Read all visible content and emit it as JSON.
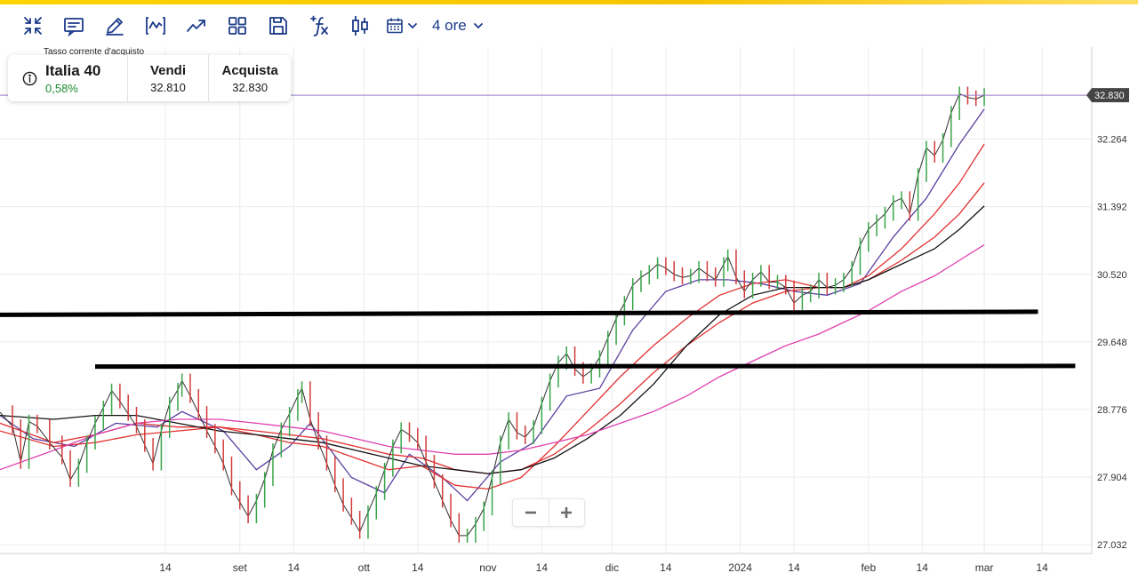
{
  "toolbar": {
    "icons": [
      "collapse-icon",
      "chart-settings-icon",
      "draw-icon",
      "indicator-icon",
      "trend-icon",
      "layout-icon",
      "save-icon",
      "formula-icon",
      "candle-icon",
      "calendar-icon"
    ],
    "timeframe": "4 ore"
  },
  "instrument": {
    "caption": "Tasso corrente d'acquisto",
    "name": "Italia 40",
    "change": "0,58%",
    "sell_label": "Vendi",
    "sell_value": "32.810",
    "buy_label": "Acquista",
    "buy_value": "32.830",
    "price_tag": "32.830",
    "change_color": "#1a8a2e"
  },
  "chart_data": {
    "type": "line",
    "instrument": "Italia 40",
    "timeframe": "4 ore",
    "current_price": 32830,
    "y_ticks": [
      "27.032",
      "27.904",
      "28.776",
      "29.648",
      "30.520",
      "31.392",
      "32.264"
    ],
    "y_tick_values": [
      27032,
      27904,
      28776,
      29648,
      30520,
      31392,
      32264
    ],
    "ylim": [
      26920,
      33450
    ],
    "x_ticks": [
      "14",
      "set",
      "14",
      "ott",
      "14",
      "nov",
      "14",
      "dic",
      "14",
      "2024",
      "14",
      "feb",
      "14",
      "mar",
      "14"
    ],
    "x_tick_days": [
      -78,
      -60,
      -47,
      -30,
      -17,
      0,
      13,
      30,
      43,
      61,
      74,
      92,
      105,
      120,
      134
    ],
    "xlim": [
      -118,
      146
    ],
    "price_series": {
      "name": "",
      "color": "#2f2f2f",
      "points": [
        [
          -118,
          28740
        ],
        [
          -115,
          28560
        ],
        [
          -113,
          28100
        ],
        [
          -111,
          28620
        ],
        [
          -109,
          28560
        ],
        [
          -106,
          28350
        ],
        [
          -103,
          28160
        ],
        [
          -101,
          27870
        ],
        [
          -99,
          28050
        ],
        [
          -97,
          28350
        ],
        [
          -95,
          28600
        ],
        [
          -93,
          28800
        ],
        [
          -91,
          29020
        ],
        [
          -89,
          28880
        ],
        [
          -87,
          28720
        ],
        [
          -85,
          28560
        ],
        [
          -83,
          28320
        ],
        [
          -81,
          28080
        ],
        [
          -79,
          28500
        ],
        [
          -77,
          28850
        ],
        [
          -75,
          29030
        ],
        [
          -74,
          29150
        ],
        [
          -72,
          28950
        ],
        [
          -70,
          28730
        ],
        [
          -68,
          28500
        ],
        [
          -66,
          28300
        ],
        [
          -64,
          28080
        ],
        [
          -62,
          27760
        ],
        [
          -60,
          27580
        ],
        [
          -58,
          27400
        ],
        [
          -56,
          27600
        ],
        [
          -54,
          27880
        ],
        [
          -52,
          28250
        ],
        [
          -50,
          28520
        ],
        [
          -48,
          28720
        ],
        [
          -46,
          28950
        ],
        [
          -45,
          29050
        ],
        [
          -43,
          28650
        ],
        [
          -41,
          28350
        ],
        [
          -39,
          28080
        ],
        [
          -37,
          27800
        ],
        [
          -35,
          27550
        ],
        [
          -33,
          27380
        ],
        [
          -31,
          27200
        ],
        [
          -29,
          27450
        ],
        [
          -27,
          27700
        ],
        [
          -25,
          28000
        ],
        [
          -23,
          28300
        ],
        [
          -21,
          28520
        ],
        [
          -19,
          28450
        ],
        [
          -17,
          28350
        ],
        [
          -15,
          28100
        ],
        [
          -13,
          27850
        ],
        [
          -11,
          27600
        ],
        [
          -9,
          27350
        ],
        [
          -7,
          27150
        ],
        [
          -5,
          27150
        ],
        [
          -3,
          27300
        ],
        [
          -1,
          27500
        ],
        [
          1,
          27900
        ],
        [
          3,
          28350
        ],
        [
          5,
          28650
        ],
        [
          7,
          28480
        ],
        [
          9,
          28420
        ],
        [
          11,
          28550
        ],
        [
          13,
          28850
        ],
        [
          15,
          29150
        ],
        [
          17,
          29380
        ],
        [
          19,
          29500
        ],
        [
          21,
          29300
        ],
        [
          23,
          29200
        ],
        [
          25,
          29280
        ],
        [
          27,
          29450
        ],
        [
          29,
          29700
        ],
        [
          31,
          29950
        ],
        [
          33,
          30150
        ],
        [
          35,
          30380
        ],
        [
          37,
          30480
        ],
        [
          39,
          30550
        ],
        [
          41,
          30650
        ],
        [
          43,
          30600
        ],
        [
          45,
          30520
        ],
        [
          47,
          30480
        ],
        [
          49,
          30500
        ],
        [
          51,
          30600
        ],
        [
          53,
          30520
        ],
        [
          55,
          30450
        ],
        [
          57,
          30650
        ],
        [
          58,
          30750
        ],
        [
          60,
          30480
        ],
        [
          62,
          30300
        ],
        [
          64,
          30450
        ],
        [
          66,
          30550
        ],
        [
          68,
          30420
        ],
        [
          70,
          30420
        ],
        [
          72,
          30350
        ],
        [
          74,
          30150
        ],
        [
          76,
          30250
        ],
        [
          78,
          30300
        ],
        [
          80,
          30450
        ],
        [
          82,
          30350
        ],
        [
          84,
          30380
        ],
        [
          86,
          30450
        ],
        [
          88,
          30600
        ],
        [
          90,
          30900
        ],
        [
          92,
          31100
        ],
        [
          94,
          31200
        ],
        [
          96,
          31300
        ],
        [
          98,
          31450
        ],
        [
          100,
          31500
        ],
        [
          102,
          31300
        ],
        [
          104,
          31800
        ],
        [
          106,
          32150
        ],
        [
          108,
          32050
        ],
        [
          110,
          32250
        ],
        [
          112,
          32600
        ],
        [
          114,
          32850
        ],
        [
          116,
          32800
        ],
        [
          118,
          32780
        ],
        [
          120,
          32830
        ]
      ]
    },
    "moving_averages": [
      {
        "name": "",
        "color": "#5a3fa0",
        "points": [
          [
            -118,
            28700
          ],
          [
            -110,
            28400
          ],
          [
            -100,
            28300
          ],
          [
            -90,
            28600
          ],
          [
            -80,
            28550
          ],
          [
            -74,
            28750
          ],
          [
            -64,
            28500
          ],
          [
            -56,
            28000
          ],
          [
            -48,
            28300
          ],
          [
            -43,
            28600
          ],
          [
            -33,
            27900
          ],
          [
            -25,
            27700
          ],
          [
            -19,
            28200
          ],
          [
            -11,
            27900
          ],
          [
            -5,
            27600
          ],
          [
            3,
            28100
          ],
          [
            11,
            28350
          ],
          [
            19,
            28950
          ],
          [
            27,
            29050
          ],
          [
            35,
            29800
          ],
          [
            43,
            30300
          ],
          [
            51,
            30450
          ],
          [
            58,
            30450
          ],
          [
            66,
            30400
          ],
          [
            74,
            30300
          ],
          [
            82,
            30250
          ],
          [
            90,
            30400
          ],
          [
            98,
            31000
          ],
          [
            106,
            31500
          ],
          [
            114,
            32200
          ],
          [
            120,
            32650
          ]
        ]
      },
      {
        "name": "",
        "color": "#e23030",
        "points": [
          [
            -118,
            28600
          ],
          [
            -105,
            28350
          ],
          [
            -95,
            28450
          ],
          [
            -85,
            28600
          ],
          [
            -75,
            28550
          ],
          [
            -65,
            28550
          ],
          [
            -56,
            28450
          ],
          [
            -48,
            28350
          ],
          [
            -40,
            28300
          ],
          [
            -32,
            28150
          ],
          [
            -24,
            28000
          ],
          [
            -16,
            28050
          ],
          [
            -8,
            27800
          ],
          [
            0,
            27750
          ],
          [
            8,
            27900
          ],
          [
            16,
            28300
          ],
          [
            24,
            28750
          ],
          [
            32,
            29200
          ],
          [
            40,
            29600
          ],
          [
            48,
            29950
          ],
          [
            56,
            30250
          ],
          [
            64,
            30400
          ],
          [
            72,
            30450
          ],
          [
            80,
            30350
          ],
          [
            86,
            30350
          ],
          [
            92,
            30500
          ],
          [
            100,
            30850
          ],
          [
            108,
            31300
          ],
          [
            114,
            31700
          ],
          [
            120,
            32200
          ]
        ]
      },
      {
        "name": "",
        "color": "#e23030",
        "points": [
          [
            -118,
            28500
          ],
          [
            -105,
            28300
          ],
          [
            -95,
            28350
          ],
          [
            -85,
            28450
          ],
          [
            -75,
            28500
          ],
          [
            -65,
            28550
          ],
          [
            -56,
            28500
          ],
          [
            -48,
            28450
          ],
          [
            -40,
            28400
          ],
          [
            -32,
            28300
          ],
          [
            -24,
            28200
          ],
          [
            -16,
            28150
          ],
          [
            -8,
            28000
          ],
          [
            0,
            27950
          ],
          [
            8,
            28000
          ],
          [
            16,
            28200
          ],
          [
            24,
            28500
          ],
          [
            32,
            28850
          ],
          [
            40,
            29250
          ],
          [
            48,
            29600
          ],
          [
            56,
            29900
          ],
          [
            64,
            30150
          ],
          [
            72,
            30300
          ],
          [
            80,
            30350
          ],
          [
            86,
            30350
          ],
          [
            92,
            30450
          ],
          [
            100,
            30700
          ],
          [
            108,
            31000
          ],
          [
            114,
            31300
          ],
          [
            120,
            31700
          ]
        ]
      },
      {
        "name": "",
        "color": "#111111",
        "points": [
          [
            -118,
            28700
          ],
          [
            -105,
            28650
          ],
          [
            -95,
            28700
          ],
          [
            -85,
            28700
          ],
          [
            -75,
            28600
          ],
          [
            -65,
            28500
          ],
          [
            -56,
            28450
          ],
          [
            -48,
            28400
          ],
          [
            -40,
            28350
          ],
          [
            -32,
            28250
          ],
          [
            -24,
            28150
          ],
          [
            -16,
            28050
          ],
          [
            -8,
            28000
          ],
          [
            0,
            27950
          ],
          [
            8,
            28000
          ],
          [
            16,
            28150
          ],
          [
            24,
            28400
          ],
          [
            32,
            28700
          ],
          [
            40,
            29100
          ],
          [
            48,
            29600
          ],
          [
            56,
            30000
          ],
          [
            64,
            30250
          ],
          [
            72,
            30350
          ],
          [
            80,
            30350
          ],
          [
            86,
            30350
          ],
          [
            92,
            30450
          ],
          [
            100,
            30650
          ],
          [
            108,
            30850
          ],
          [
            114,
            31100
          ],
          [
            120,
            31400
          ]
        ]
      },
      {
        "name": "",
        "color": "#e040b0",
        "points": [
          [
            -118,
            28000
          ],
          [
            -105,
            28250
          ],
          [
            -95,
            28450
          ],
          [
            -85,
            28600
          ],
          [
            -75,
            28650
          ],
          [
            -65,
            28650
          ],
          [
            -56,
            28600
          ],
          [
            -48,
            28550
          ],
          [
            -40,
            28500
          ],
          [
            -32,
            28400
          ],
          [
            -24,
            28300
          ],
          [
            -16,
            28250
          ],
          [
            -8,
            28200
          ],
          [
            0,
            28200
          ],
          [
            8,
            28250
          ],
          [
            16,
            28350
          ],
          [
            24,
            28450
          ],
          [
            32,
            28600
          ],
          [
            40,
            28750
          ],
          [
            48,
            28950
          ],
          [
            56,
            29200
          ],
          [
            64,
            29400
          ],
          [
            72,
            29600
          ],
          [
            80,
            29750
          ],
          [
            86,
            29900
          ],
          [
            92,
            30050
          ],
          [
            100,
            30300
          ],
          [
            108,
            30500
          ],
          [
            114,
            30700
          ],
          [
            120,
            30900
          ]
        ]
      }
    ],
    "drawn_lines": [
      {
        "color": "#000000",
        "points": [
          [
            -118,
            29997
          ],
          [
            133,
            30037
          ]
        ]
      },
      {
        "color": "#000000",
        "points": [
          [
            -95,
            29330
          ],
          [
            142,
            29338
          ]
        ]
      }
    ],
    "price_line_color": "#9b7fc8",
    "grid": true
  }
}
